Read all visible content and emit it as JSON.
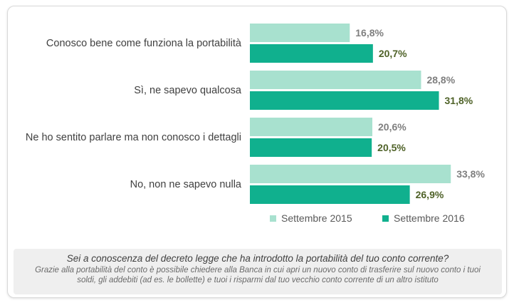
{
  "colors": {
    "series_2015": "#a8e1cf",
    "series_2016": "#10b08e",
    "label_2015": "#7f7f7f",
    "label_2016": "#4f6228"
  },
  "chart_data": {
    "type": "bar",
    "orientation": "horizontal",
    "categories": [
      "Conosco bene come funziona la portabilità",
      "Sì, ne sapevo qualcosa",
      "Ne ho sentito parlare ma non conosco i dettagli",
      "No, non ne sapevo nulla"
    ],
    "series": [
      {
        "name": "Settembre 2015",
        "values": [
          16.8,
          28.8,
          20.6,
          33.8
        ],
        "labels": [
          "16,8%",
          "28,8%",
          "20,6%",
          "33,8%"
        ]
      },
      {
        "name": "Settembre 2016",
        "values": [
          20.7,
          31.8,
          20.5,
          26.9
        ],
        "labels": [
          "20,7%",
          "31,8%",
          "20,5%",
          "26,9%"
        ]
      }
    ],
    "legend_position": "bottom-right",
    "grid": false
  },
  "footer": {
    "question": "Sei a conoscenza del decreto legge che ha introdotto la portabilità del tuo conto corrente?",
    "note": "Grazie alla portabilità del conto è possibile chiedere alla Banca in cui apri un nuovo conto di trasferire sul nuovo conto i tuoi soldi, gli addebiti (ad es. le bollette) e tuoi i risparmi dal tuo vecchio conto corrente di un altro istituto"
  }
}
